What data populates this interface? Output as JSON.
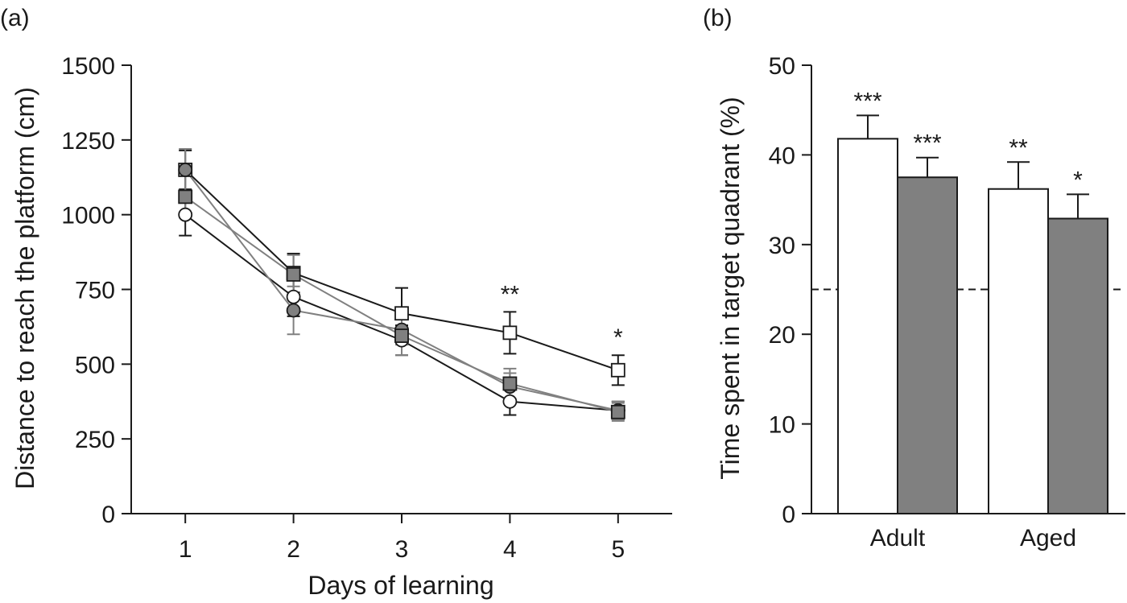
{
  "panel_a_label": "(a)",
  "panel_b_label": "(b)",
  "colors": {
    "axis": "#1a1a1a",
    "dark_line": "#1a1a1a",
    "gray_line": "#808080",
    "gray_fill": "#808080",
    "white_fill": "#ffffff"
  },
  "chart_data": [
    {
      "type": "line",
      "xlabel": "Days of learning",
      "ylabel": "Distance to reach the platform (cm)",
      "x": [
        1,
        2,
        3,
        4,
        5
      ],
      "xlim": [
        0.5,
        5.5
      ],
      "ylim": [
        0,
        1500
      ],
      "xticks": [
        "1",
        "2",
        "3",
        "4",
        "5"
      ],
      "yticks": [
        "0",
        "250",
        "500",
        "750",
        "1000",
        "1250",
        "1500"
      ],
      "series": [
        {
          "marker": "open-square",
          "line_color": "#1a1a1a",
          "marker_fill": "#ffffff",
          "values": [
            1150,
            805,
            670,
            605,
            480
          ],
          "errors": [
            65,
            65,
            85,
            70,
            50
          ]
        },
        {
          "marker": "open-circle",
          "line_color": "#1a1a1a",
          "marker_fill": "#ffffff",
          "values": [
            1000,
            725,
            580,
            375,
            345
          ],
          "errors": [
            70,
            65,
            50,
            45,
            30
          ]
        },
        {
          "marker": "filled-circle",
          "line_color": "#808080",
          "marker_fill": "#808080",
          "values": [
            1150,
            680,
            615,
            425,
            345
          ],
          "errors": [
            70,
            80,
            50,
            45,
            30
          ]
        },
        {
          "marker": "filled-square",
          "line_color": "#808080",
          "marker_fill": "#808080",
          "values": [
            1060,
            800,
            595,
            435,
            340
          ],
          "errors": [
            70,
            65,
            65,
            50,
            30
          ]
        }
      ],
      "annotations": [
        {
          "x": 4,
          "text": "**"
        },
        {
          "x": 5,
          "text": "*"
        }
      ]
    },
    {
      "type": "bar",
      "xlabel": "",
      "ylabel": "Time spent in target quadrant (%)",
      "categories": [
        "Adult",
        "Aged"
      ],
      "ylim": [
        0,
        50
      ],
      "yticks": [
        "0",
        "10",
        "20",
        "30",
        "40",
        "50"
      ],
      "reference_line": 25,
      "series": [
        {
          "fill": "#ffffff",
          "values": [
            41.8,
            36.2
          ],
          "errors": [
            2.6,
            3.0
          ],
          "significance": [
            "***",
            "**"
          ]
        },
        {
          "fill": "#808080",
          "values": [
            37.5,
            32.9
          ],
          "errors": [
            2.2,
            2.7
          ],
          "significance": [
            "***",
            "*"
          ]
        }
      ]
    }
  ]
}
